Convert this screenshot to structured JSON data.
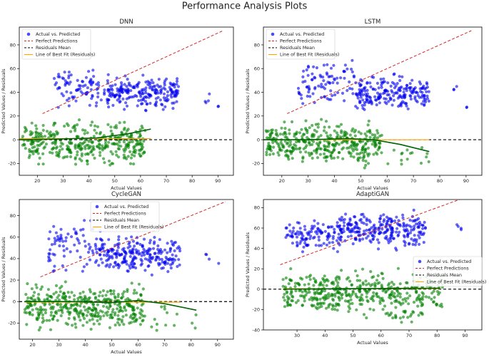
{
  "figure": {
    "title": "Performance Analysis Plots"
  },
  "chart_data": [
    {
      "type": "scatter",
      "title": "DNN",
      "xlabel": "Actual Values",
      "ylabel": "Predicted Values / Residuals",
      "xlim": [
        13,
        96
      ],
      "ylim": [
        -30,
        95
      ],
      "xticks": [
        20,
        30,
        40,
        50,
        60,
        70,
        80,
        90
      ],
      "yticks": [
        -20,
        0,
        20,
        40,
        60,
        80
      ],
      "legend_position": "upper-left",
      "series": [
        {
          "name": "Actual vs. Predicted",
          "kind": "scatter",
          "color": "#0000ee",
          "clusters": [
            [
              26,
              48,
              22,
              64,
              90
            ],
            [
              47,
              75,
              22,
              58,
              220
            ],
            [
              85,
              87,
              26,
              46,
              4
            ],
            [
              90,
              91,
              27,
              29,
              2
            ]
          ]
        },
        {
          "name": "Perfect Predictions",
          "kind": "line",
          "color": "#d62728",
          "dash": "dashed",
          "x": [
            22,
            92
          ],
          "y": [
            22,
            92
          ]
        },
        {
          "name": "Residuals Mean",
          "kind": "hline",
          "color": "#000000",
          "dash": "dashed",
          "y": 0
        },
        {
          "name": "Line of Best Fit (Residuals)",
          "kind": "line",
          "color": "#ffa500",
          "x": [
            13,
            64
          ],
          "y": [
            1,
            1
          ]
        },
        {
          "name": "",
          "kind": "scatter",
          "color": "#008000",
          "clusters": [
            [
              14,
              62,
              -27,
              20,
              380
            ]
          ]
        },
        {
          "name": "",
          "kind": "curve",
          "color": "#006400",
          "x": [
            13,
            28,
            43,
            55,
            64
          ],
          "y": [
            0,
            0.5,
            1.5,
            5,
            9
          ]
        }
      ]
    },
    {
      "type": "scatter",
      "title": "LSTM",
      "xlabel": "Actual Values",
      "ylabel": "Predicted Values / Residuals",
      "xlim": [
        13,
        96
      ],
      "ylim": [
        -30,
        95
      ],
      "xticks": [
        20,
        30,
        40,
        50,
        60,
        70,
        80,
        90
      ],
      "yticks": [
        -20,
        0,
        20,
        40,
        60,
        80
      ],
      "legend_position": "upper-left",
      "series": [
        {
          "name": "Actual vs. Predicted",
          "kind": "scatter",
          "color": "#0000ee",
          "clusters": [
            [
              26,
              48,
              20,
              76,
              90
            ],
            [
              48,
              76,
              20,
              58,
              220
            ],
            [
              85,
              87,
              40,
              47,
              3
            ],
            [
              90,
              91,
              26,
              29,
              2
            ]
          ]
        },
        {
          "name": "Perfect Predictions",
          "kind": "line",
          "color": "#d62728",
          "dash": "dashed",
          "x": [
            22,
            92
          ],
          "y": [
            22,
            92
          ]
        },
        {
          "name": "Residuals Mean",
          "kind": "hline",
          "color": "#000000",
          "dash": "dashed",
          "y": 0
        },
        {
          "name": "Line of Best Fit (Residuals)",
          "kind": "line",
          "color": "#ffa500",
          "x": [
            13,
            76
          ],
          "y": [
            0,
            0
          ]
        },
        {
          "name": "",
          "kind": "scatter",
          "color": "#008000",
          "clusters": [
            [
              14,
              58,
              -27,
              22,
              380
            ],
            [
              60,
              76,
              -28,
              0,
              15
            ]
          ]
        },
        {
          "name": "",
          "kind": "curve",
          "color": "#006400",
          "x": [
            13,
            30,
            45,
            55,
            65,
            76
          ],
          "y": [
            0,
            0,
            1,
            0,
            -4,
            -10
          ]
        }
      ]
    },
    {
      "type": "scatter",
      "title": "CycleGAN",
      "xlabel": "Actual Values",
      "ylabel": "Predicted Values / Residuals",
      "xlim": [
        15,
        96
      ],
      "ylim": [
        -35,
        95
      ],
      "xticks": [
        20,
        30,
        40,
        50,
        60,
        70,
        80,
        90
      ],
      "yticks": [
        -20,
        0,
        20,
        40,
        60,
        80
      ],
      "legend_position": "upper-center",
      "series": [
        {
          "name": "Actual vs. Predicted",
          "kind": "scatter",
          "color": "#0000ee",
          "clusters": [
            [
              26,
              48,
              20,
              82,
              100
            ],
            [
              48,
              76,
              22,
              66,
              220
            ],
            [
              85,
              87,
              35,
              55,
              3
            ],
            [
              90,
              91,
              35,
              37,
              1
            ]
          ]
        },
        {
          "name": "Perfect Predictions",
          "kind": "line",
          "color": "#d62728",
          "dash": "dashed",
          "x": [
            23,
            93
          ],
          "y": [
            23,
            93
          ]
        },
        {
          "name": "Residuals Mean",
          "kind": "hline",
          "color": "#000000",
          "dash": "dashed",
          "y": 0
        },
        {
          "name": "Line of Best Fit (Residuals)",
          "kind": "line",
          "color": "#ffa500",
          "x": [
            17,
            76
          ],
          "y": [
            -0.5,
            -0.5
          ]
        },
        {
          "name": "",
          "kind": "scatter",
          "color": "#008000",
          "clusters": [
            [
              17,
              62,
              -32,
              22,
              400
            ],
            [
              62,
              82,
              -33,
              0,
              15
            ]
          ]
        },
        {
          "name": "",
          "kind": "curve",
          "color": "#006400",
          "x": [
            17,
            35,
            50,
            60,
            70,
            82
          ],
          "y": [
            0,
            0,
            -1,
            1,
            -2,
            -8
          ]
        }
      ]
    },
    {
      "type": "scatter",
      "title": "AdaptiGAN",
      "xlabel": "Actual Values",
      "ylabel": "Predicted Values / Residuals",
      "xlim": [
        18,
        96
      ],
      "ylim": [
        -40,
        88
      ],
      "xticks": [
        30,
        40,
        50,
        60,
        70,
        80,
        90
      ],
      "yticks": [
        -40,
        -20,
        0,
        20,
        40,
        60,
        80
      ],
      "legend_position": "center-right",
      "series": [
        {
          "name": "Actual vs. Predicted",
          "kind": "scatter",
          "color": "#0000ee",
          "clusters": [
            [
              26,
              45,
              30,
              76,
              110
            ],
            [
              45,
              76,
              35,
              82,
              260
            ],
            [
              85,
              90,
              52,
              74,
              4
            ]
          ]
        },
        {
          "name": "Perfect Predictions",
          "kind": "line",
          "color": "#d62728",
          "dash": "dashed",
          "x": [
            24,
            93
          ],
          "y": [
            24,
            93
          ]
        },
        {
          "name": "Residuals Mean",
          "kind": "hline",
          "color": "#000000",
          "dash": "dashed",
          "y": 0
        },
        {
          "name": "Line of Best Fit (Residuals)",
          "kind": "line",
          "color": "#ffa500",
          "x": [
            25,
            81
          ],
          "y": [
            0.5,
            0.5
          ]
        },
        {
          "name": "",
          "kind": "scatter",
          "color": "#008000",
          "clusters": [
            [
              25,
              82,
              -32,
              24,
              420
            ],
            [
              60,
              75,
              -34,
              -18,
              20
            ]
          ]
        },
        {
          "name": "",
          "kind": "curve",
          "color": "#006400",
          "x": [
            25,
            50,
            81
          ],
          "y": [
            0,
            0.5,
            1
          ]
        }
      ]
    }
  ]
}
